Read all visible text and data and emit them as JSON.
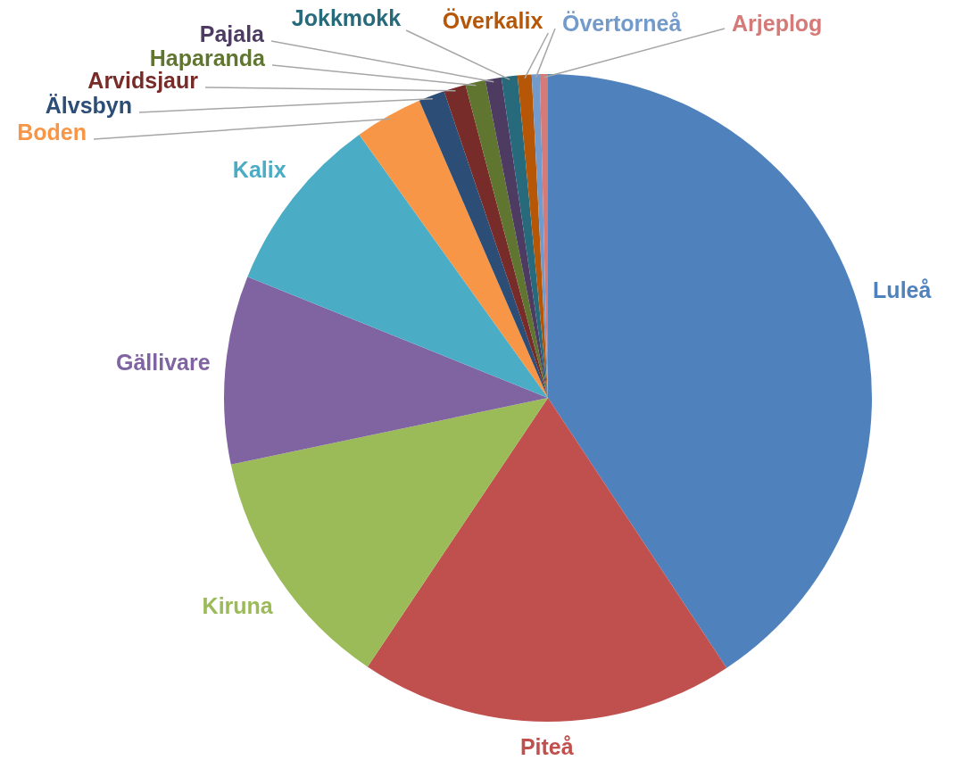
{
  "chart_data": {
    "type": "pie",
    "categories": [
      "Luleå",
      "Piteå",
      "Kiruna",
      "Gällivare",
      "Kalix",
      "Boden",
      "Älvsbyn",
      "Arvidsjaur",
      "Haparanda",
      "Pajala",
      "Jokkmokk",
      "Överkalix",
      "Övertorneå",
      "Arjeplog"
    ],
    "values": [
      40.7,
      18.7,
      12.3,
      9.4,
      9.0,
      3.4,
      1.3,
      1.1,
      1.0,
      0.8,
      0.8,
      0.7,
      0.4,
      0.4
    ],
    "colors": [
      "#4f81bd",
      "#c0504d",
      "#9bbb59",
      "#8064a2",
      "#4bacc6",
      "#f79646",
      "#2c4d75",
      "#772c2a",
      "#5f7530",
      "#4d3b62",
      "#276a7c",
      "#b65708",
      "#729aca",
      "#d47a78"
    ],
    "legend": false
  }
}
